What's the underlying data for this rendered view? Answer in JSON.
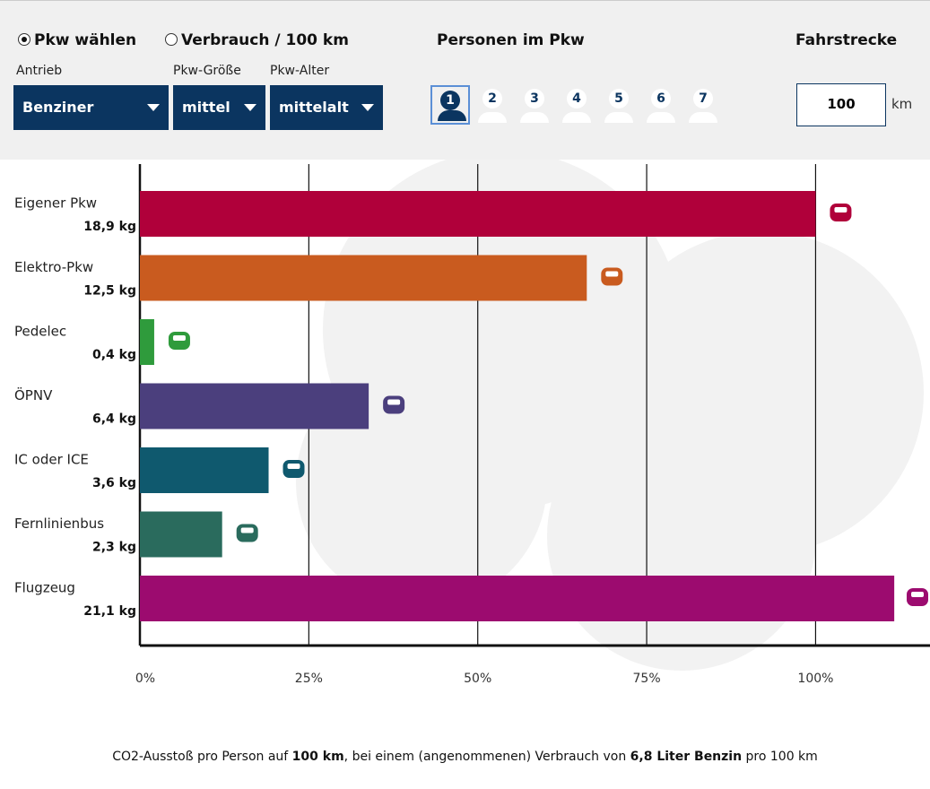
{
  "controls": {
    "mode_options": [
      "Pkw wählen",
      "Verbrauch / 100 km"
    ],
    "selected_mode": 0,
    "dropdown_labels": [
      "Antrieb",
      "Pkw-Größe",
      "Pkw-Alter"
    ],
    "dropdown_values": [
      "Benziner",
      "mittel",
      "mittelalt"
    ],
    "persons_title": "Personen im Pkw",
    "persons": [
      1,
      2,
      3,
      4,
      5,
      6,
      7
    ],
    "selected_person": 0,
    "distance_title": "Fahrstrecke",
    "distance_value": 100,
    "distance_unit": "km"
  },
  "chart_data": {
    "type": "hbar",
    "categories": [
      "Eigener Pkw",
      "Elektro-Pkw",
      "Pedelec",
      "ÖPNV",
      "IC oder ICE",
      "Fernlinienbus",
      "Flugzeug"
    ],
    "values": [
      18.9,
      12.5,
      0.4,
      6.4,
      3.6,
      2.3,
      21.1
    ],
    "value_labels": [
      "18,9 kg",
      "12,5 kg",
      "0,4 kg",
      "6,4 kg",
      "3,6 kg",
      "2,3 kg",
      "21,1 kg"
    ],
    "colors": [
      "#b0003a",
      "#c95b1f",
      "#2f9b3c",
      "#4b3f7d",
      "#0f596e",
      "#2a6b5d",
      "#9c0b6f"
    ],
    "xlim": [
      0,
      22.1
    ],
    "xticks": [
      {
        "value": 0,
        "label": "0%"
      },
      {
        "value": 4.725,
        "label": "25%"
      },
      {
        "value": 9.45,
        "label": "50%"
      },
      {
        "value": 14.175,
        "label": "75%"
      },
      {
        "value": 18.9,
        "label": "100%"
      }
    ],
    "grid": true
  },
  "footnote": [
    "CO2-Ausstoß pro Person auf ",
    "100 km",
    ", bei einem (angenommenen) Verbrauch von ",
    "6,8 Liter Benzin",
    " pro 100 km"
  ]
}
